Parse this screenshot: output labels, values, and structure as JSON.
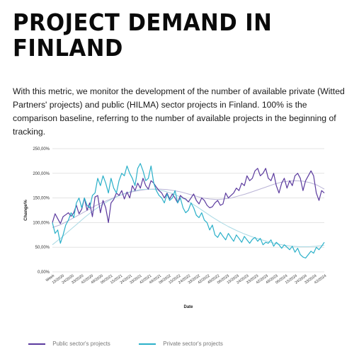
{
  "page": {
    "title_line1": "PROJECT DEMAND IN",
    "title_line2": "FINLAND",
    "description": "With this metric, we monitor the development of the number of available private (Witted Partners' projects) and public (HILMA) sector projects in Finland. 100% is the comparison baseline, referring to the number of available projects in the beginning of tracking."
  },
  "chart_data": {
    "type": "line",
    "xlabel": "Date",
    "ylabel": "Change%",
    "ylim": [
      0,
      250
    ],
    "yticks": [
      0,
      50,
      100,
      150,
      200,
      250
    ],
    "ytick_labels": [
      "0,00%",
      "50,00%",
      "100,00%",
      "150,00%",
      "200,00%",
      "250,00%"
    ],
    "xtick_labels": [
      "Week",
      "15/2020",
      "24/2020",
      "33/2020",
      "42/2020",
      "49/2020",
      "06/2021",
      "15/2021",
      "24/2021",
      "33/2021",
      "42/2021",
      "49/2021",
      "06/2022",
      "15/2022",
      "24/2022",
      "33/2022",
      "42/2022",
      "49/2022",
      "06/2023",
      "15/2023",
      "24/2023",
      "33/2023",
      "42/2023",
      "49/2023",
      "06/2024",
      "15/2024",
      "24/2024",
      "33/2024",
      "42/2024"
    ],
    "grid": true,
    "legend_position": "bottom",
    "series": [
      {
        "name": "Public sector's projects",
        "color": "#5b3a9e",
        "values": [
          100,
          118,
          108,
          98,
          112,
          116,
          120,
          113,
          120,
          135,
          118,
          127,
          150,
          125,
          140,
          112,
          152,
          155,
          120,
          145,
          130,
          100,
          140,
          147,
          160,
          155,
          165,
          148,
          162,
          150,
          175,
          165,
          180,
          170,
          190,
          175,
          168,
          185,
          180,
          172,
          165,
          160,
          150,
          160,
          148,
          158,
          150,
          140,
          155,
          150,
          148,
          142,
          150,
          158,
          145,
          138,
          150,
          145,
          135,
          130,
          132,
          140,
          145,
          135,
          138,
          160,
          150,
          155,
          160,
          170,
          165,
          180,
          175,
          195,
          185,
          190,
          205,
          210,
          195,
          200,
          210,
          190,
          185,
          200,
          175,
          160,
          180,
          190,
          170,
          185,
          175,
          195,
          200,
          190,
          165,
          185,
          195,
          205,
          195,
          160,
          145,
          165,
          160
        ]
      },
      {
        "name": "Private sector's projects",
        "color": "#2ab0c9",
        "values": [
          100,
          78,
          85,
          58,
          75,
          95,
          105,
          120,
          110,
          140,
          150,
          130,
          150,
          135,
          130,
          155,
          160,
          190,
          175,
          195,
          180,
          160,
          190,
          170,
          160,
          185,
          200,
          195,
          215,
          200,
          190,
          175,
          210,
          220,
          205,
          185,
          190,
          215,
          180,
          165,
          155,
          150,
          140,
          158,
          145,
          150,
          165,
          140,
          150,
          130,
          120,
          125,
          140,
          130,
          115,
          110,
          120,
          105,
          100,
          85,
          95,
          75,
          70,
          80,
          72,
          65,
          78,
          70,
          62,
          75,
          68,
          60,
          72,
          65,
          58,
          66,
          70,
          62,
          68,
          55,
          60,
          58,
          65,
          52,
          60,
          55,
          48,
          55,
          50,
          45,
          52,
          40,
          48,
          35,
          30,
          28,
          35,
          42,
          38,
          50,
          45,
          52,
          60
        ]
      },
      {
        "name": "",
        "color": "#b9b3d6",
        "values": [
          90,
          95,
          102,
          110,
          118,
          126,
          134,
          141,
          147,
          153,
          158,
          162,
          165,
          167,
          168,
          168,
          167,
          165,
          162,
          158,
          154,
          150,
          148,
          147,
          148,
          150,
          154,
          158,
          163,
          168,
          173,
          178,
          182,
          184,
          185,
          184,
          181,
          176,
          168
        ]
      },
      {
        "name": "",
        "color": "#a9d9e4",
        "values": [
          55,
          68,
          82,
          96,
          110,
          123,
          134,
          144,
          152,
          159,
          164,
          167,
          168,
          167,
          164,
          159,
          152,
          143,
          133,
          122,
          111,
          101,
          92,
          84,
          77,
          71,
          66,
          61,
          57,
          54,
          52,
          51,
          51,
          52,
          54
        ]
      }
    ]
  }
}
